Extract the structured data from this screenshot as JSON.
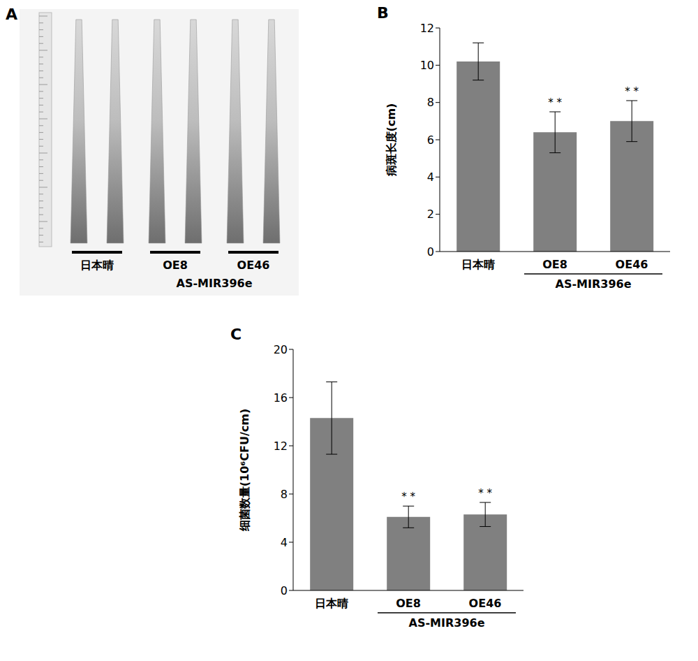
{
  "chart_data": [
    {
      "type": "image",
      "panel": "A",
      "categories": [
        "日本晴",
        "OE8",
        "OE46"
      ],
      "group_label": {
        "text": "AS-MIR396e",
        "categories": [
          "OE8",
          "OE46"
        ]
      }
    },
    {
      "type": "bar",
      "panel": "B",
      "ylabel": "病斑长度(cm)",
      "categories": [
        "日本晴",
        "OE8",
        "OE46"
      ],
      "values": [
        10.2,
        6.4,
        7.0
      ],
      "errors": [
        1.0,
        1.1,
        1.1
      ],
      "significance": [
        null,
        "* *",
        "* *"
      ],
      "color": "#808080",
      "ylim": [
        0,
        12
      ],
      "yticks": [
        0,
        2,
        4,
        6,
        8,
        10,
        12
      ],
      "grid": false,
      "group_label": {
        "text": "AS-MIR396e",
        "categories": [
          "OE8",
          "OE46"
        ]
      }
    },
    {
      "type": "bar",
      "panel": "C",
      "ylabel": "细菌数量(10⁶CFU/cm)",
      "categories": [
        "日本晴",
        "OE8",
        "OE46"
      ],
      "values": [
        14.3,
        6.1,
        6.3
      ],
      "errors": [
        3.0,
        0.9,
        1.0
      ],
      "significance": [
        null,
        "* *",
        "* *"
      ],
      "color": "#808080",
      "ylim": [
        0,
        20
      ],
      "yticks": [
        0,
        4,
        8,
        12,
        16,
        20
      ],
      "grid": false,
      "group_label": {
        "text": "AS-MIR396e",
        "categories": [
          "OE8",
          "OE46"
        ]
      }
    }
  ]
}
